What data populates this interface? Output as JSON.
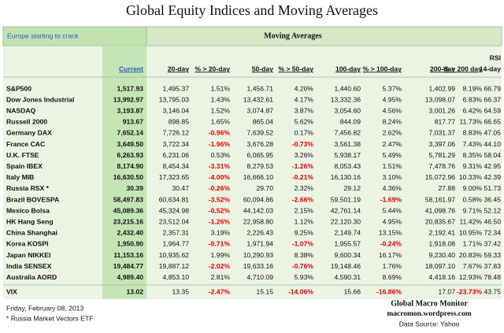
{
  "title": "Global Equity Indices and Moving Averages",
  "table": {
    "note": "Europe starting to crack",
    "group_header": "Moving Averages",
    "columns": [
      "Current",
      "20-day",
      "% > 20-day",
      "50-day",
      "% > 50-day",
      "100-day",
      "% > 100-day",
      "200-day",
      "% > 200 day",
      [
        "RSI",
        "14-day"
      ]
    ],
    "rows": [
      [
        "S&P500",
        "1,517.93",
        "1,495.37",
        "1.51%",
        "1,456.71",
        "4.20%",
        "1,440.60",
        "5.37%",
        "1,402.99",
        "8.19%",
        "66.79"
      ],
      [
        "Dow Jones Industrial",
        "13,992.97",
        "13,795.03",
        "1.43%",
        "13,432.61",
        "4.17%",
        "13,332.36",
        "4.95%",
        "13,098.07",
        "6.83%",
        "66.37"
      ],
      [
        "NASDAQ",
        "3,193.87",
        "3,146.04",
        "1.52%",
        "3,074.87",
        "3.87%",
        "3,054.60",
        "4.56%",
        "3,001.26",
        "6.42%",
        "64.59"
      ],
      [
        "Russell 2000",
        "913.67",
        "898.85",
        "1.65%",
        "865.04",
        "5.62%",
        "844.09",
        "8.24%",
        "817.77",
        "11.73%",
        "66.65"
      ],
      [
        "Germany DAX",
        "7,652.14",
        "7,726.12",
        "-0.96%",
        "7,639.52",
        "0.17%",
        "7,456.82",
        "2.62%",
        "7,031.37",
        "8.83%",
        "47.05"
      ],
      [
        "France CAC",
        "3,649.50",
        "3,722.34",
        "-1.96%",
        "3,676.28",
        "-0.73%",
        "3,561.38",
        "2.47%",
        "3,397.06",
        "7.43%",
        "44.10"
      ],
      [
        "U.K. FTSE",
        "6,263.93",
        "6,231.06",
        "0.53%",
        "6,065.95",
        "3.26%",
        "5,938.17",
        "5.49%",
        "5,781.29",
        "8.35%",
        "58.04"
      ],
      [
        "Spain IBEX",
        "8,174.90",
        "8,454.34",
        "-3.31%",
        "8,279.53",
        "-1.26%",
        "8,053.43",
        "1.51%",
        "7,478.76",
        "9.31%",
        "42.95"
      ],
      [
        "Italy MIB",
        "16,630.50",
        "17,323.65",
        "-4.00%",
        "16,666.10",
        "-0.21%",
        "16,130.16",
        "3.10%",
        "15,072.96",
        "10.33%",
        "42.39"
      ],
      [
        "Russia RSX *",
        "30.39",
        "30.47",
        "-0.26%",
        "29.70",
        "2.32%",
        "29.12",
        "4.36%",
        "27.88",
        "9.00%",
        "51.73"
      ],
      [
        "Brazil BOVESPA",
        "58,497.83",
        "60,634.81",
        "-3.52%",
        "60,094.86",
        "-2.66%",
        "59,501.19",
        "-1.69%",
        "58,161.97",
        "0.58%",
        "36.45"
      ],
      [
        "Mexico Bolsa",
        "45,089.36",
        "45,324.98",
        "-0.52%",
        "44,142.03",
        "2.15%",
        "42,761.14",
        "5.44%",
        "41,098.76",
        "9.71%",
        "52.12"
      ],
      [
        "HK Hang Seng",
        "23,215.16",
        "23,512.04",
        "-1.26%",
        "22,958.80",
        "1.12%",
        "22,120.30",
        "4.95%",
        "20,835.67",
        "11.42%",
        "46.50"
      ],
      [
        "China Shanghai",
        "2,432.40",
        "2,357.31",
        "3.19%",
        "2,226.43",
        "9.25%",
        "2,149.74",
        "13.15%",
        "2,192.41",
        "10.95%",
        "72.34"
      ],
      [
        "Korea KOSPI",
        "1,950.90",
        "1,964.77",
        "-0.71%",
        "1,971.94",
        "-1.07%",
        "1,955.57",
        "-0.24%",
        "1,918.08",
        "1.71%",
        "37.42"
      ],
      [
        "Japan NIKKEI",
        "11,153.16",
        "10,935.62",
        "1.99%",
        "10,290.93",
        "8.38%",
        "9,600.34",
        "16.17%",
        "9,230.40",
        "20.83%",
        "59.33"
      ],
      [
        "India SENSEX",
        "19,484.77",
        "19,887.12",
        "-2.02%",
        "19,633.16",
        "-0.76%",
        "19,148.46",
        "1.76%",
        "18,097.10",
        "7.67%",
        "37.83"
      ],
      [
        "Australia AORD",
        "4,989.40",
        "4,853.10",
        "2.81%",
        "4,710.09",
        "5.93%",
        "4,590.31",
        "8.69%",
        "4,418.16",
        "12.93%",
        "78.48"
      ],
      [
        "VIX",
        "13.02",
        "13.35",
        "-2.47%",
        "15.15",
        "-14.06%",
        "15.66",
        "-16.86%",
        "17.07",
        "-23.73%",
        "43.75"
      ]
    ]
  },
  "footer": {
    "date": "Friday, February 08, 2013",
    "footnote": "* Russia Market Vectors ETF",
    "source_title": "Global Macro Monitor",
    "source_url": "macromon.wordpress.com",
    "data_source": "Data Source: Yahoo"
  }
}
